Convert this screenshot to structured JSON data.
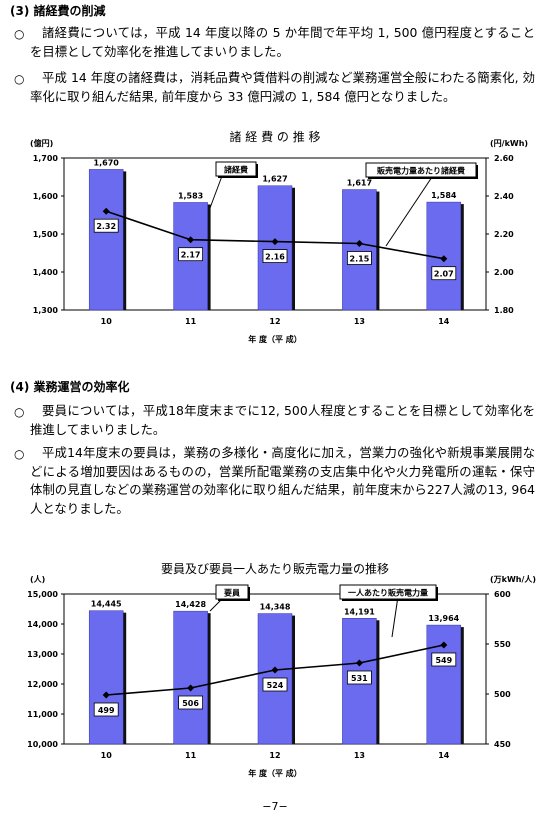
{
  "section3": {
    "heading": "(3) 諸経費の削減",
    "paragraphs": [
      "諸経費については，平成 14 年度以降の 5 か年間で年平均 1, 500 億円程度とすることを目標として効率化を推進してまいりました。",
      "平成 14 年度の諸経費は，消耗品費や賃借料の削減など業務運営全般にわたる簡素化, 効率化に取り組んだ結果, 前年度から 33 億円減の 1, 584 億円となりました。"
    ]
  },
  "section4": {
    "heading": "(4) 業務運営の効率化",
    "paragraphs": [
      "要員については，平成18年度末までに12, 500人程度とすることを目標として効率化を推進してまいりました。",
      "平成14年度末の要員は，業務の多様化・高度化に加え，営業力の強化や新規事業展開などによる増加要因はあるものの，営業所配電業務の支店集中化や火力発電所の運転・保守体制の見直しなどの業務運営の効率化に取り組んだ結果，前年度末から227人減の13, 964人となりました。"
    ]
  },
  "bullet_symbol": "○",
  "chart_data": [
    {
      "type": "bar",
      "title": "諸 経 費 の 推 移",
      "xlabel": "年 度（平 成）",
      "ylabel": "(億円)",
      "y2label": "(円/kWh)",
      "categories": [
        "10",
        "11",
        "12",
        "13",
        "14"
      ],
      "ylim": [
        1300,
        1700
      ],
      "yticks": [
        "1,300",
        "1,400",
        "1,500",
        "1,600",
        "1,700"
      ],
      "y2lim": [
        1.8,
        2.6
      ],
      "y2ticks": [
        "1.80",
        "2.00",
        "2.20",
        "2.40",
        "2.60"
      ],
      "series": [
        {
          "name": "諸経費",
          "kind": "bar",
          "values": [
            1670,
            1583,
            1627,
            1617,
            1584
          ],
          "labels": [
            "1,670",
            "1,583",
            "1,627",
            "1,617",
            "1,584"
          ],
          "color": "#6b6bef"
        },
        {
          "name": "販売電力量あたり諸経費",
          "kind": "line",
          "axis": "right",
          "values": [
            2.32,
            2.17,
            2.16,
            2.15,
            2.07
          ],
          "labels": [
            "2.32",
            "2.17",
            "2.16",
            "2.15",
            "2.07"
          ]
        }
      ]
    },
    {
      "type": "bar",
      "title": "要員及び要員一人あたり販売電力量の推移",
      "xlabel": "年 度（平 成）",
      "ylabel": "(人)",
      "y2label": "(万kWh/人)",
      "categories": [
        "10",
        "11",
        "12",
        "13",
        "14"
      ],
      "ylim": [
        10000,
        15000
      ],
      "yticks": [
        "10,000",
        "11,000",
        "12,000",
        "13,000",
        "14,000",
        "15,000"
      ],
      "y2lim": [
        450,
        600
      ],
      "y2ticks": [
        "450",
        "500",
        "550",
        "600"
      ],
      "series": [
        {
          "name": "要員",
          "kind": "bar",
          "values": [
            14445,
            14428,
            14348,
            14191,
            13964
          ],
          "labels": [
            "14,445",
            "14,428",
            "14,348",
            "14,191",
            "13,964"
          ],
          "color": "#6b6bef"
        },
        {
          "name": "一人あたり販売電力量",
          "kind": "line",
          "axis": "right",
          "values": [
            499,
            506,
            524,
            531,
            549
          ],
          "labels": [
            "499",
            "506",
            "524",
            "531",
            "549"
          ]
        }
      ]
    }
  ],
  "page_number": "−7−"
}
